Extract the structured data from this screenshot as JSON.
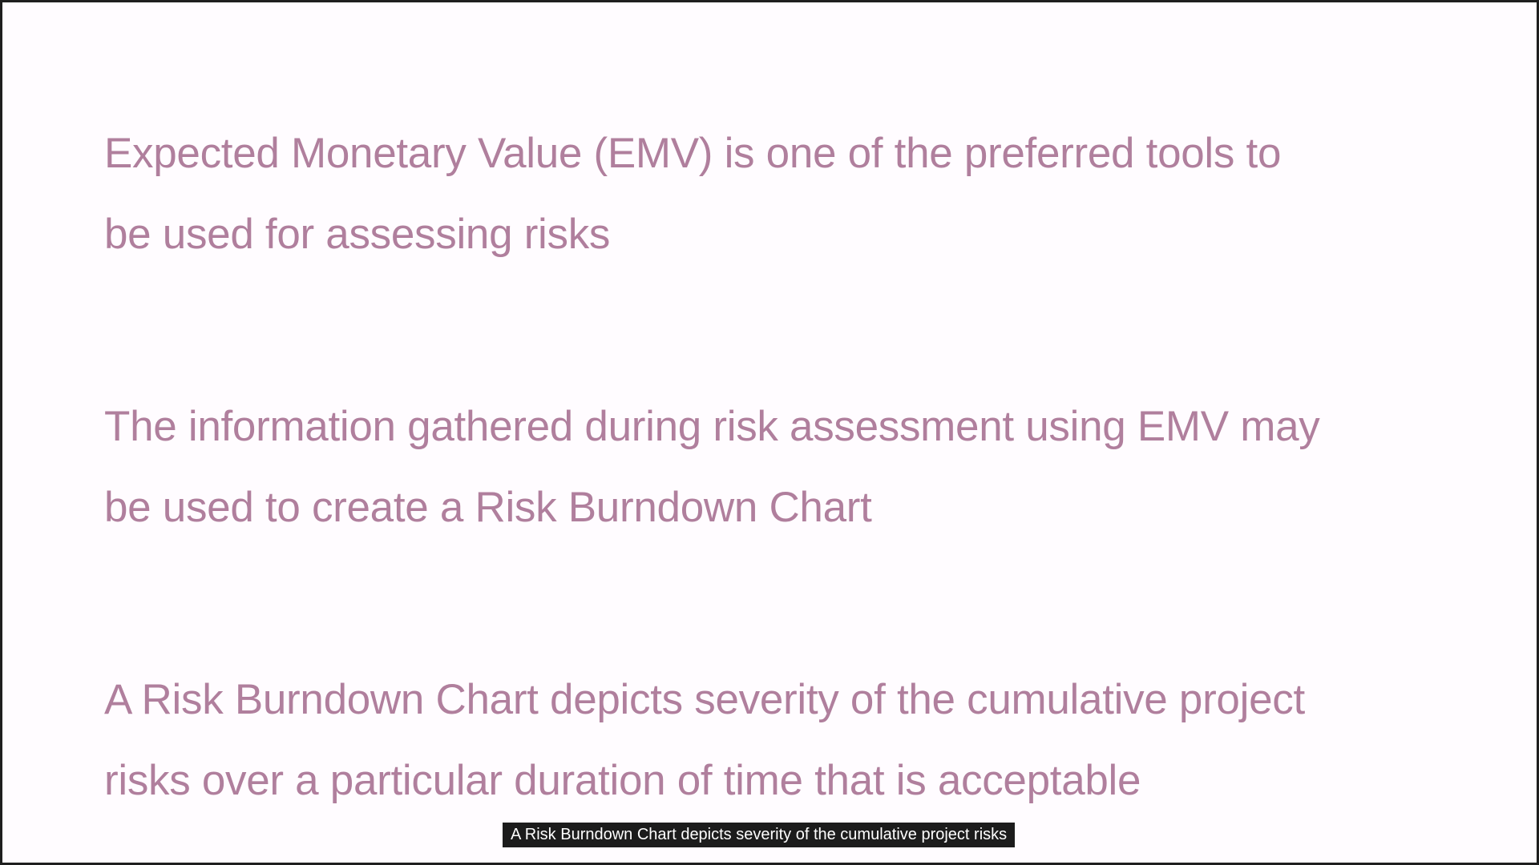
{
  "slide": {
    "paragraphs": [
      "Expected Monetary Value (EMV) is one of the preferred tools to\nbe used for assessing risks",
      "The information gathered during risk assessment using EMV may\nbe used to create a Risk Burndown Chart",
      "A Risk Burndown Chart depicts severity of the cumulative project\nrisks over a particular duration of time that is acceptable"
    ]
  },
  "caption": {
    "text": "A Risk Burndown Chart depicts severity of the cumulative project risks"
  },
  "colors": {
    "text": "#b07f9d",
    "background": "#fffcff",
    "caption_background": "#1c1c1c"
  }
}
